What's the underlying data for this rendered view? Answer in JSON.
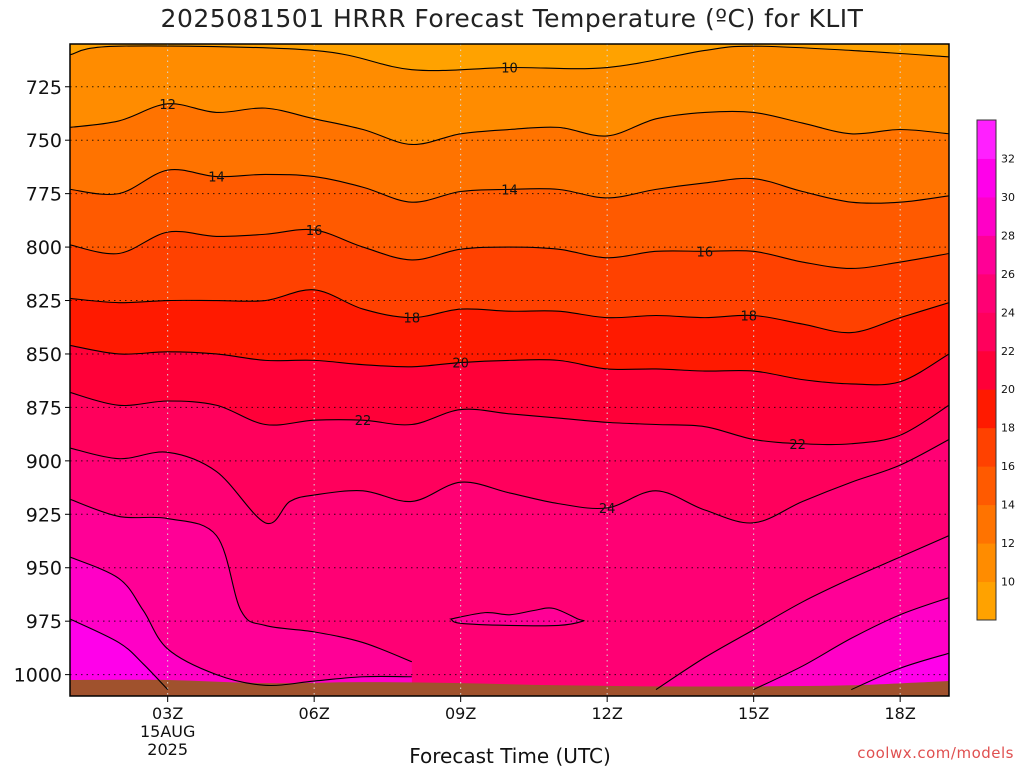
{
  "chart_data": {
    "type": "heatmap",
    "title": "2025081501 HRRR Forecast Temperature (ºC) for KLIT",
    "xlabel": "Forecast Time (UTC)",
    "ylabel": "",
    "watermark": "coolwx.com/models",
    "y_axis": {
      "label": "",
      "ticks": [
        725,
        750,
        775,
        800,
        825,
        850,
        875,
        900,
        925,
        950,
        975,
        1000
      ],
      "range": [
        1010,
        705
      ],
      "unit": "hPa"
    },
    "x_axis": {
      "ticks": [
        "03Z",
        "06Z",
        "09Z",
        "12Z",
        "15Z",
        "18Z"
      ],
      "tick_hours": [
        3,
        6,
        9,
        12,
        15,
        18
      ],
      "range_hours": [
        1,
        19
      ],
      "first_tick_sub": [
        "15AUG",
        "2025"
      ]
    },
    "contour_interval": 2,
    "contours": [
      {
        "value": 10,
        "label": "10",
        "points": [
          [
            1,
            710
          ],
          [
            2,
            706
          ],
          [
            6,
            708
          ],
          [
            8,
            717
          ],
          [
            10,
            716
          ],
          [
            12,
            716
          ],
          [
            14,
            708
          ],
          [
            15,
            706
          ],
          [
            17,
            708
          ],
          [
            19,
            711
          ]
        ]
      },
      {
        "value": 12,
        "label": "12",
        "points": [
          [
            1,
            744
          ],
          [
            2,
            741
          ],
          [
            3,
            733
          ],
          [
            4,
            737
          ],
          [
            5,
            735
          ],
          [
            6,
            740
          ],
          [
            7,
            745
          ],
          [
            8,
            752
          ],
          [
            9,
            747
          ],
          [
            10,
            745
          ],
          [
            11,
            744
          ],
          [
            12,
            748
          ],
          [
            13,
            740
          ],
          [
            14,
            737
          ],
          [
            15,
            737
          ],
          [
            16,
            742
          ],
          [
            17,
            747
          ],
          [
            18,
            745
          ],
          [
            19,
            747
          ]
        ]
      },
      {
        "value": 14,
        "label": "14",
        "points": [
          [
            1,
            773
          ],
          [
            2,
            775
          ],
          [
            3,
            764
          ],
          [
            4,
            767
          ],
          [
            5,
            766
          ],
          [
            6,
            767
          ],
          [
            7,
            772
          ],
          [
            8,
            779
          ],
          [
            9,
            774
          ],
          [
            10,
            773
          ],
          [
            11,
            773
          ],
          [
            12,
            777
          ],
          [
            13,
            773
          ],
          [
            14,
            770
          ],
          [
            15,
            768
          ],
          [
            16,
            774
          ],
          [
            17,
            779
          ],
          [
            18,
            779
          ],
          [
            19,
            776
          ]
        ]
      },
      {
        "value": 16,
        "label": "16",
        "points": [
          [
            1,
            799
          ],
          [
            2,
            803
          ],
          [
            3,
            793
          ],
          [
            4,
            795
          ],
          [
            5,
            794
          ],
          [
            6,
            792
          ],
          [
            7,
            800
          ],
          [
            8,
            806
          ],
          [
            9,
            801
          ],
          [
            10,
            800
          ],
          [
            11,
            801
          ],
          [
            12,
            805
          ],
          [
            13,
            802
          ],
          [
            14,
            802
          ],
          [
            15,
            802
          ],
          [
            16,
            807
          ],
          [
            17,
            810
          ],
          [
            18,
            807
          ],
          [
            19,
            803
          ]
        ]
      },
      {
        "value": 18,
        "label": "18",
        "points": [
          [
            1,
            824
          ],
          [
            2,
            826
          ],
          [
            3,
            825
          ],
          [
            4,
            825
          ],
          [
            5,
            825
          ],
          [
            6,
            820
          ],
          [
            7,
            829
          ],
          [
            8,
            833
          ],
          [
            9,
            829
          ],
          [
            10,
            830
          ],
          [
            11,
            830
          ],
          [
            12,
            833
          ],
          [
            13,
            832
          ],
          [
            14,
            833
          ],
          [
            15,
            832
          ],
          [
            16,
            836
          ],
          [
            17,
            840
          ],
          [
            18,
            833
          ],
          [
            19,
            826
          ]
        ]
      },
      {
        "value": 20,
        "label": "20",
        "points": [
          [
            1,
            846
          ],
          [
            2,
            850
          ],
          [
            3,
            849
          ],
          [
            4,
            850
          ],
          [
            5,
            853
          ],
          [
            6,
            853
          ],
          [
            7,
            855
          ],
          [
            8,
            856
          ],
          [
            9,
            854
          ],
          [
            10,
            853
          ],
          [
            11,
            853
          ],
          [
            12,
            857
          ],
          [
            13,
            857
          ],
          [
            14,
            858
          ],
          [
            15,
            858
          ],
          [
            16,
            862
          ],
          [
            17,
            864
          ],
          [
            18,
            863
          ],
          [
            19,
            850
          ]
        ]
      },
      {
        "value": 22,
        "label": "22",
        "points": [
          [
            1,
            868
          ],
          [
            2,
            874
          ],
          [
            3,
            872
          ],
          [
            4,
            874
          ],
          [
            5,
            883
          ],
          [
            6,
            881
          ],
          [
            7,
            881
          ],
          [
            8,
            883
          ],
          [
            9,
            876
          ],
          [
            10,
            878
          ],
          [
            11,
            880
          ],
          [
            12,
            882
          ],
          [
            13,
            883
          ],
          [
            14,
            884
          ],
          [
            15,
            890
          ],
          [
            16,
            892
          ],
          [
            17,
            892
          ],
          [
            18,
            888
          ],
          [
            19,
            874
          ]
        ]
      },
      {
        "value": 24,
        "label": "24",
        "points": [
          [
            1,
            894
          ],
          [
            2,
            899
          ],
          [
            3,
            896
          ],
          [
            4,
            905
          ],
          [
            5,
            929
          ],
          [
            5.5,
            919
          ],
          [
            6,
            916
          ],
          [
            7,
            914
          ],
          [
            8,
            919
          ],
          [
            9,
            910
          ],
          [
            10,
            915
          ],
          [
            11,
            920
          ],
          [
            12,
            922
          ],
          [
            13,
            914
          ],
          [
            14,
            923
          ],
          [
            15,
            929
          ],
          [
            16,
            919
          ],
          [
            17,
            910
          ],
          [
            18,
            902
          ],
          [
            19,
            890
          ]
        ]
      },
      {
        "value": 26,
        "label": "",
        "points": [
          [
            1,
            918
          ],
          [
            2,
            926
          ],
          [
            3,
            927
          ],
          [
            4,
            935
          ],
          [
            4.5,
            970
          ],
          [
            5,
            977
          ],
          [
            6,
            980
          ],
          [
            7,
            985
          ],
          [
            8,
            994
          ]
        ]
      },
      {
        "value": 26,
        "label": "",
        "points": [
          [
            13,
            1007
          ],
          [
            14,
            992
          ],
          [
            15,
            979
          ],
          [
            16,
            966
          ],
          [
            17,
            955
          ],
          [
            18,
            945
          ],
          [
            19,
            935
          ]
        ]
      },
      {
        "value": 28,
        "label": "",
        "points": [
          [
            1,
            945
          ],
          [
            2,
            955
          ],
          [
            2.5,
            970
          ],
          [
            3,
            988
          ],
          [
            4,
            1000
          ],
          [
            5,
            1005
          ],
          [
            6,
            1003
          ],
          [
            7,
            1001
          ],
          [
            8,
            1001
          ]
        ]
      },
      {
        "value": 28,
        "label": "",
        "points": [
          [
            15,
            1007
          ],
          [
            16,
            996
          ],
          [
            17,
            983
          ],
          [
            18,
            972
          ],
          [
            19,
            964
          ]
        ]
      },
      {
        "value": 30,
        "label": "",
        "points": [
          [
            1,
            974
          ],
          [
            2,
            985
          ],
          [
            2.5,
            995
          ],
          [
            3,
            1007
          ]
        ]
      },
      {
        "value": 30,
        "label": "",
        "points": [
          [
            17,
            1007
          ],
          [
            18,
            997
          ],
          [
            19,
            990
          ]
        ]
      }
    ],
    "closed_contours": [
      {
        "value": 26,
        "points": [
          [
            8.8,
            974
          ],
          [
            9.5,
            971
          ],
          [
            10,
            972
          ],
          [
            10.5,
            970
          ],
          [
            10.9,
            969
          ],
          [
            11.4,
            974
          ],
          [
            11.5,
            975
          ],
          [
            11,
            977
          ],
          [
            10,
            977
          ],
          [
            9,
            976
          ]
        ]
      }
    ],
    "contour_labels": [
      {
        "text": "10",
        "x": 10,
        "y": 716
      },
      {
        "text": "12",
        "x": 3,
        "y": 733
      },
      {
        "text": "14",
        "x": 4,
        "y": 767
      },
      {
        "text": "14",
        "x": 10,
        "y": 773
      },
      {
        "text": "16",
        "x": 6,
        "y": 792
      },
      {
        "text": "16",
        "x": 14,
        "y": 802
      },
      {
        "text": "18",
        "x": 8,
        "y": 833
      },
      {
        "text": "18",
        "x": 14.9,
        "y": 832
      },
      {
        "text": "20",
        "x": 9,
        "y": 854
      },
      {
        "text": "22",
        "x": 7,
        "y": 881
      },
      {
        "text": "22",
        "x": 15.9,
        "y": 892
      },
      {
        "text": "24",
        "x": 12,
        "y": 922
      }
    ],
    "surface_color": "#a0522d",
    "colorbar": {
      "labels": [
        10,
        12,
        14,
        16,
        18,
        20,
        22,
        24,
        26,
        28,
        30,
        32
      ],
      "colors": [
        "#ffa200",
        "#ff8c00",
        "#ff7300",
        "#ff5a00",
        "#ff4100",
        "#ff1a00",
        "#ff0038",
        "#ff005c",
        "#ff0074",
        "#ff0096",
        "#ff00c6",
        "#ff00ea",
        "#ff20ff"
      ]
    },
    "band_colors": {
      "lt10": "#ffa200",
      "10-12": "#ff8c00",
      "12-14": "#ff7300",
      "14-16": "#ff5a00",
      "16-18": "#ff4100",
      "18-20": "#ff1a00",
      "20-22": "#ff0038",
      "22-24": "#ff005c",
      "24-26": "#ff0074",
      "26-28": "#ff0096",
      "28-30": "#ff00c6",
      "30-32": "#ff00ea"
    }
  }
}
